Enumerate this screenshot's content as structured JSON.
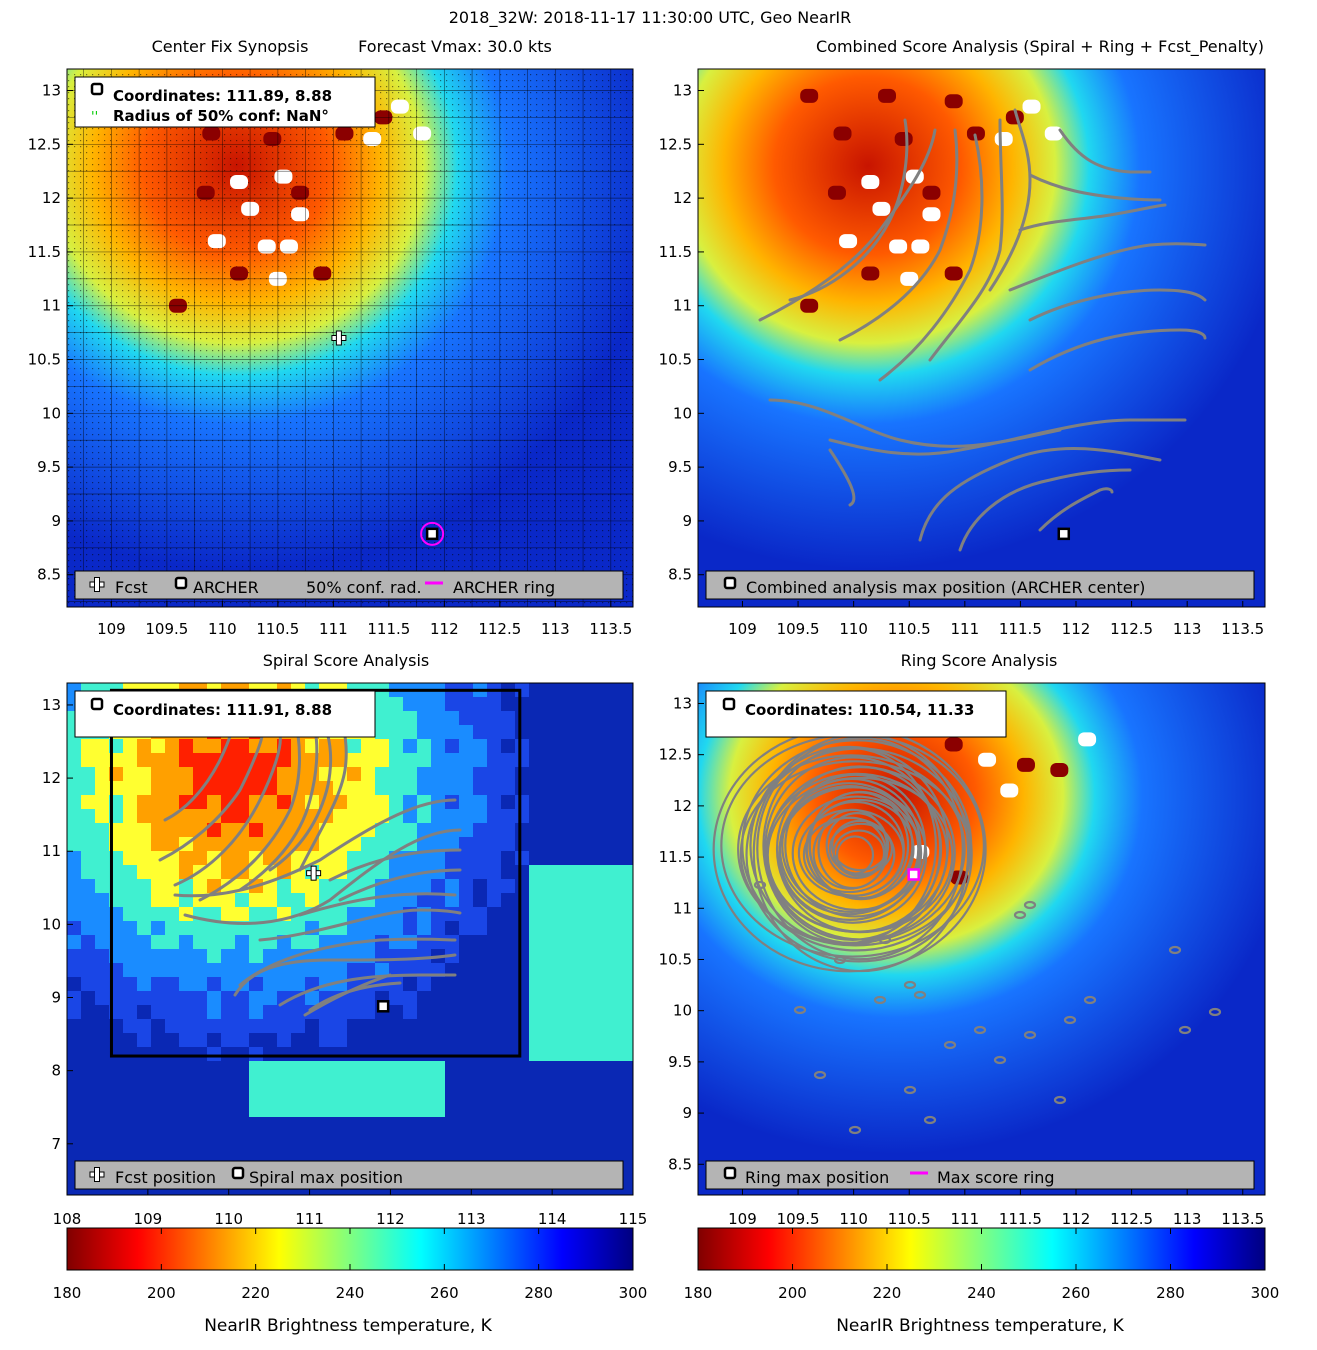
{
  "figure": {
    "suptitle": "2018_32W: 2018-11-17 11:30:00 UTC, Geo NearIR",
    "colors": {
      "fcst_marker": "#ffffff",
      "archer_marker": "#000000",
      "conf_radius": "#00cc00",
      "archer_ring": "#ff00ff",
      "contour": "#808080",
      "legend_bg": "#b4b4b4"
    }
  },
  "chart_data": [
    {
      "id": "center-fix",
      "type": "heatmap",
      "title_left": "Center Fix Synopsis",
      "title_right": "Forecast Vmax: 30.0 kts",
      "xlim": [
        108.6,
        113.7
      ],
      "ylim": [
        8.2,
        13.2
      ],
      "xticks": [
        "109",
        "109.5",
        "110",
        "110.5",
        "111",
        "111.5",
        "112",
        "112.5",
        "113",
        "113.5"
      ],
      "yticks": [
        "8.5",
        "9",
        "9.5",
        "10",
        "10.5",
        "11",
        "11.5",
        "12",
        "12.5",
        "13"
      ],
      "grid": true,
      "info_lines": [
        "Coordinates: 111.89, 8.88",
        "Radius of 50% conf: NaN°"
      ],
      "legend": [
        "Fcst",
        "ARCHER",
        "50% conf. rad.",
        "ARCHER ring"
      ],
      "fcst": [
        111.05,
        10.7
      ],
      "archer": [
        111.89,
        8.88
      ]
    },
    {
      "id": "combined",
      "type": "heatmap",
      "title": "Combined Score Analysis (Spiral + Ring + Fcst_Penalty)",
      "xlim": [
        108.6,
        113.7
      ],
      "ylim": [
        8.2,
        13.2
      ],
      "xticks": [
        "109",
        "109.5",
        "110",
        "110.5",
        "111",
        "111.5",
        "112",
        "112.5",
        "113",
        "113.5"
      ],
      "yticks": [
        "8.5",
        "9",
        "9.5",
        "10",
        "10.5",
        "11",
        "11.5",
        "12",
        "12.5",
        "13"
      ],
      "legend": [
        "Combined analysis max position (ARCHER center)"
      ],
      "archer": [
        111.89,
        8.88
      ]
    },
    {
      "id": "spiral",
      "type": "heatmap",
      "title": "Spiral Score Analysis",
      "xlim": [
        108,
        115
      ],
      "ylim": [
        6.3,
        13.3
      ],
      "xticks": [
        "108",
        "109",
        "110",
        "111",
        "112",
        "113",
        "114",
        "115"
      ],
      "yticks": [
        "7",
        "8",
        "9",
        "10",
        "11",
        "12",
        "13"
      ],
      "info_lines": [
        "Coordinates: 111.91, 8.88"
      ],
      "legend": [
        "Fcst position",
        "Spiral max position"
      ],
      "fcst": [
        111.05,
        10.7
      ],
      "spiral_max": [
        111.91,
        8.88
      ],
      "search_box": {
        "x": [
          108.55,
          113.6
        ],
        "y": [
          8.2,
          13.2
        ]
      }
    },
    {
      "id": "ring",
      "type": "heatmap",
      "title": "Ring Score Analysis",
      "xlim": [
        108.6,
        113.7
      ],
      "ylim": [
        8.2,
        13.2
      ],
      "xticks": [
        "109",
        "109.5",
        "110",
        "110.5",
        "111",
        "111.5",
        "112",
        "112.5",
        "113",
        "113.5"
      ],
      "yticks": [
        "8.5",
        "9",
        "9.5",
        "10",
        "10.5",
        "11",
        "11.5",
        "12",
        "12.5",
        "13"
      ],
      "info_lines": [
        "Coordinates: 110.54, 11.33"
      ],
      "legend": [
        "Ring max position",
        "Max score ring"
      ],
      "ring_max": [
        110.54,
        11.33
      ]
    }
  ],
  "colorbars": [
    {
      "id": "left",
      "ticks": [
        "180",
        "200",
        "220",
        "240",
        "260",
        "280",
        "300"
      ],
      "label": "NearIR Brightness temperature, K",
      "range": [
        180,
        300
      ]
    },
    {
      "id": "right",
      "ticks": [
        "180",
        "200",
        "220",
        "240",
        "260",
        "280",
        "300"
      ],
      "label": "NearIR Brightness temperature, K",
      "range": [
        180,
        300
      ]
    }
  ]
}
